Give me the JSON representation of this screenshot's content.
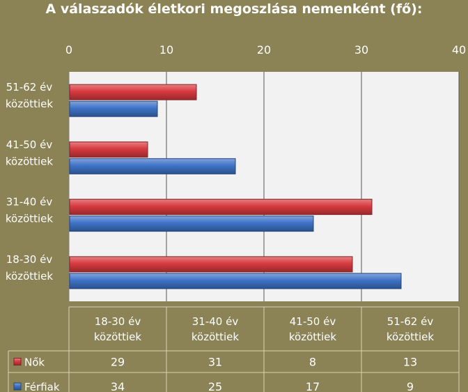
{
  "chart_data": {
    "type": "bar",
    "orientation": "horizontal",
    "title": "A válaszadók életkori megoszlása nemenként (fő):",
    "categories": [
      "18-30 év közöttiek",
      "31-40 év közöttiek",
      "41-50 év közöttiek",
      "51-62 év közöttiek"
    ],
    "category_lines": [
      [
        "18-30 év",
        "közöttiek"
      ],
      [
        "31-40 év",
        "közöttiek"
      ],
      [
        "41-50 év",
        "közöttiek"
      ],
      [
        "51-62 év",
        "közöttiek"
      ]
    ],
    "series": [
      {
        "name": "Nők",
        "values": [
          29,
          31,
          8,
          13
        ],
        "color": "#d83a3f"
      },
      {
        "name": "Férfiak",
        "values": [
          34,
          25,
          17,
          9
        ],
        "color": "#3f73c8"
      }
    ],
    "xlim": [
      0,
      40
    ],
    "xticks": [
      "0",
      "10",
      "20",
      "30",
      "40"
    ],
    "axis_position": "top",
    "grid": true,
    "data_table": true,
    "plot_background": "#f2f2f2",
    "background": "#8b8255"
  }
}
